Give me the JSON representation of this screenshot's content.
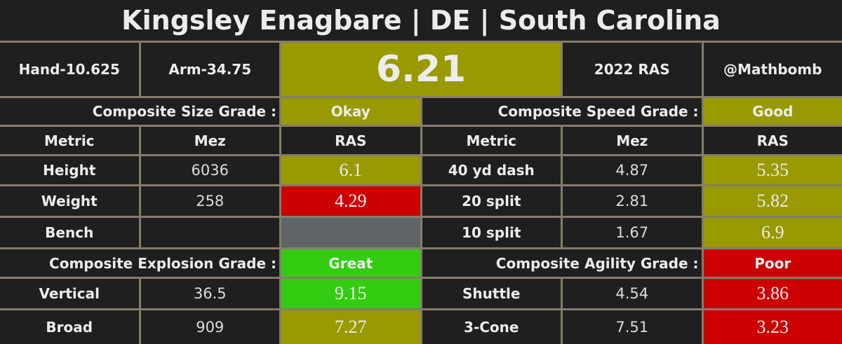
{
  "title": "Kingsley Enagbare | DE | South Carolina",
  "header": {
    "hand": "Hand-10.625",
    "arm": "Arm-34.75",
    "score": "6.21",
    "year": "2022 RAS",
    "credit": "@Mathbomb"
  },
  "sections": [
    {
      "label": "Composite Size Grade :",
      "grade": "Okay",
      "grade_color": "#999900",
      "columns": [
        "Metric",
        "Mez",
        "RAS"
      ],
      "rows": [
        {
          "metric": "Height",
          "mez": "6036",
          "ras": "6.1",
          "color": "#999900"
        },
        {
          "metric": "Weight",
          "mez": "258",
          "ras": "4.29",
          "color": "#cc0000"
        },
        {
          "metric": "Bench",
          "color": "#5f6566"
        }
      ]
    },
    {
      "label": "Composite Speed Grade :",
      "grade": "Good",
      "grade_color": "#999900",
      "columns": [
        "Metric",
        "Mez",
        "RAS"
      ],
      "rows": [
        {
          "metric": "40 yd dash",
          "mez": "4.87",
          "ras": "5.35",
          "color": "#999900"
        },
        {
          "metric": "20 split",
          "mez": "2.81",
          "ras": "5.82",
          "color": "#999900"
        },
        {
          "metric": "10 split",
          "mez": "1.67",
          "ras": "6.9",
          "color": "#999900"
        }
      ]
    },
    {
      "label": "Composite Explosion Grade :",
      "grade": "Great",
      "grade_color": "#33cc11",
      "rows": [
        {
          "metric": "Vertical",
          "mez": "36.5",
          "ras": "9.15",
          "color": "#33cc11"
        },
        {
          "metric": "Broad",
          "mez": "909",
          "ras": "7.27",
          "color": "#999900"
        }
      ]
    },
    {
      "label": "Composite Agility Grade :",
      "grade": "Poor",
      "grade_color": "#cc0000",
      "rows": [
        {
          "metric": "Shuttle",
          "mez": "4.54",
          "ras": "3.86",
          "color": "#cc0000"
        },
        {
          "metric": "3-Cone",
          "mez": "7.51",
          "ras": "3.23",
          "color": "#cc0000"
        }
      ]
    }
  ]
}
